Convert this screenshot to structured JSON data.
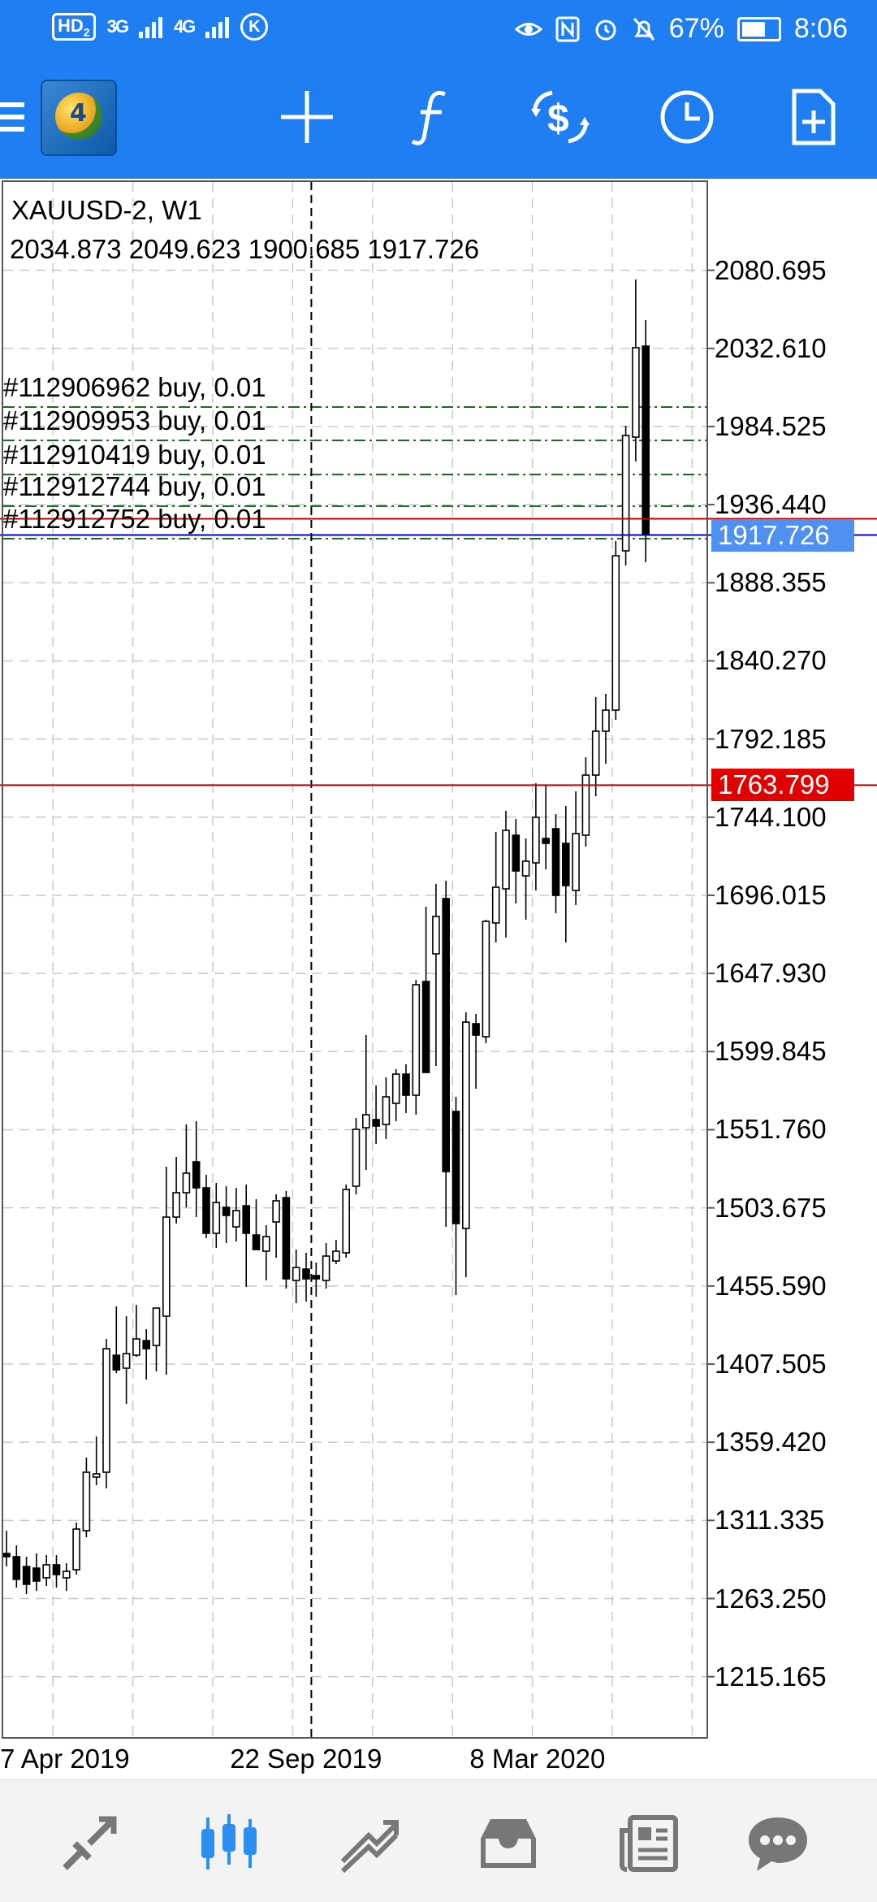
{
  "status_bar": {
    "hd_label": "HD",
    "hd_sub": "2",
    "signal1": "3G",
    "signal2": "4G",
    "k_icon": "K",
    "battery_pct": "67%",
    "battery_level": 0.67,
    "time": "8:06",
    "icons": [
      "eye-icon",
      "nfc-icon",
      "alarm-icon",
      "mute-icon"
    ]
  },
  "toolbar": {
    "menu_icon": "hamburger-icon",
    "logo_num": "4",
    "icons": [
      "crosshair-icon",
      "function-icon",
      "trade-icon",
      "clock-icon",
      "new-chart-icon"
    ]
  },
  "chart": {
    "symbol_line": "XAUUSD-2, W1",
    "ohlc_line": "2034.873 2049.623 1900.685 1917.726",
    "orders": [
      {
        "label": "#112906962 buy, 0.01",
        "price": 1996.5
      },
      {
        "label": "#112909953 buy, 0.01",
        "price": 1976.0
      },
      {
        "label": "#112910419 buy, 0.01",
        "price": 1955.0
      },
      {
        "label": "#112912744 buy, 0.01",
        "price": 1935.5
      },
      {
        "label": "#112912752 buy, 0.01",
        "price": 1915.5
      }
    ],
    "bid_price": "1917.726",
    "alert_price": "1763.799",
    "colors": {
      "bid_line": "#0000cc",
      "alert_line": "#c40000",
      "bid_box": "#4f90f0",
      "alert_box": "#e00000",
      "order_line": "#1a6d1a",
      "grid": "#c8c8c8"
    }
  },
  "chart_data": {
    "type": "candlestick",
    "symbol": "XAUUSD-2",
    "timeframe": "W1",
    "ylim": [
      1178,
      2135
    ],
    "y_ticks": [
      "2080.695",
      "2032.610",
      "1984.525",
      "1936.440",
      "1888.355",
      "1840.270",
      "1792.185",
      "1744.100",
      "1696.015",
      "1647.930",
      "1599.845",
      "1551.760",
      "1503.675",
      "1455.590",
      "1407.505",
      "1359.420",
      "1311.335",
      "1263.250",
      "1215.165"
    ],
    "x_ticks": [
      {
        "label": "7 Apr 2019",
        "bar": 0
      },
      {
        "label": "22 Sep 2019",
        "bar": 24
      },
      {
        "label": "8 Mar 2020",
        "bar": 48
      }
    ],
    "crosshair_bar": 38,
    "candles": [
      {
        "o": 1291,
        "h": 1305,
        "l": 1283,
        "c": 1289
      },
      {
        "o": 1289,
        "h": 1296,
        "l": 1270,
        "c": 1275
      },
      {
        "o": 1283,
        "h": 1289,
        "l": 1266,
        "c": 1272
      },
      {
        "o": 1282,
        "h": 1291,
        "l": 1268,
        "c": 1274
      },
      {
        "o": 1276,
        "h": 1290,
        "l": 1271,
        "c": 1284
      },
      {
        "o": 1284,
        "h": 1290,
        "l": 1270,
        "c": 1278
      },
      {
        "o": 1276,
        "h": 1285,
        "l": 1268,
        "c": 1280
      },
      {
        "o": 1281,
        "h": 1310,
        "l": 1278,
        "c": 1306
      },
      {
        "o": 1305,
        "h": 1350,
        "l": 1301,
        "c": 1341
      },
      {
        "o": 1338,
        "h": 1363,
        "l": 1333,
        "c": 1340
      },
      {
        "o": 1341,
        "h": 1423,
        "l": 1331,
        "c": 1417
      },
      {
        "o": 1413,
        "h": 1443,
        "l": 1402,
        "c": 1404
      },
      {
        "o": 1405,
        "h": 1437,
        "l": 1383,
        "c": 1414
      },
      {
        "o": 1413,
        "h": 1444,
        "l": 1412,
        "c": 1423
      },
      {
        "o": 1422,
        "h": 1429,
        "l": 1398,
        "c": 1417
      },
      {
        "o": 1419,
        "h": 1437,
        "l": 1403,
        "c": 1442
      },
      {
        "o": 1437,
        "h": 1529,
        "l": 1401,
        "c": 1498
      },
      {
        "o": 1498,
        "h": 1535,
        "l": 1494,
        "c": 1513
      },
      {
        "o": 1513,
        "h": 1555,
        "l": 1504,
        "c": 1525
      },
      {
        "o": 1532,
        "h": 1557,
        "l": 1498,
        "c": 1516
      },
      {
        "o": 1516,
        "h": 1524,
        "l": 1485,
        "c": 1488
      },
      {
        "o": 1488,
        "h": 1519,
        "l": 1479,
        "c": 1507
      },
      {
        "o": 1504,
        "h": 1517,
        "l": 1482,
        "c": 1499
      },
      {
        "o": 1492,
        "h": 1516,
        "l": 1483,
        "c": 1502
      },
      {
        "o": 1505,
        "h": 1518,
        "l": 1455,
        "c": 1488
      },
      {
        "o": 1487,
        "h": 1509,
        "l": 1478,
        "c": 1478
      },
      {
        "o": 1477,
        "h": 1493,
        "l": 1459,
        "c": 1486
      },
      {
        "o": 1495,
        "h": 1512,
        "l": 1473,
        "c": 1508
      },
      {
        "o": 1510,
        "h": 1514,
        "l": 1454,
        "c": 1460
      },
      {
        "o": 1459,
        "h": 1478,
        "l": 1445,
        "c": 1467
      },
      {
        "o": 1466,
        "h": 1476,
        "l": 1446,
        "c": 1460
      },
      {
        "o": 1462,
        "h": 1470,
        "l": 1449,
        "c": 1460
      },
      {
        "o": 1459,
        "h": 1482,
        "l": 1454,
        "c": 1474
      },
      {
        "o": 1471,
        "h": 1484,
        "l": 1469,
        "c": 1477
      },
      {
        "o": 1476,
        "h": 1518,
        "l": 1473,
        "c": 1515
      },
      {
        "o": 1517,
        "h": 1559,
        "l": 1512,
        "c": 1552
      },
      {
        "o": 1553,
        "h": 1610,
        "l": 1527,
        "c": 1561
      },
      {
        "o": 1558,
        "h": 1579,
        "l": 1543,
        "c": 1554
      },
      {
        "o": 1555,
        "h": 1584,
        "l": 1546,
        "c": 1572
      },
      {
        "o": 1568,
        "h": 1589,
        "l": 1557,
        "c": 1586
      },
      {
        "o": 1586,
        "h": 1592,
        "l": 1562,
        "c": 1573
      },
      {
        "o": 1573,
        "h": 1644,
        "l": 1561,
        "c": 1641
      },
      {
        "o": 1643,
        "h": 1689,
        "l": 1588,
        "c": 1587
      },
      {
        "o": 1660,
        "h": 1703,
        "l": 1591,
        "c": 1683
      },
      {
        "o": 1694,
        "h": 1705,
        "l": 1492,
        "c": 1526
      },
      {
        "o": 1563,
        "h": 1572,
        "l": 1450,
        "c": 1494
      },
      {
        "o": 1491,
        "h": 1624,
        "l": 1461,
        "c": 1618
      },
      {
        "o": 1617,
        "h": 1623,
        "l": 1577,
        "c": 1610
      },
      {
        "o": 1609,
        "h": 1681,
        "l": 1605,
        "c": 1680
      },
      {
        "o": 1679,
        "h": 1735,
        "l": 1667,
        "c": 1701
      },
      {
        "o": 1700,
        "h": 1748,
        "l": 1670,
        "c": 1736
      },
      {
        "o": 1733,
        "h": 1743,
        "l": 1691,
        "c": 1711
      },
      {
        "o": 1708,
        "h": 1731,
        "l": 1681,
        "c": 1717
      },
      {
        "o": 1716,
        "h": 1765,
        "l": 1699,
        "c": 1744
      },
      {
        "o": 1731,
        "h": 1764,
        "l": 1712,
        "c": 1728
      },
      {
        "o": 1737,
        "h": 1746,
        "l": 1685,
        "c": 1696
      },
      {
        "o": 1728,
        "h": 1751,
        "l": 1667,
        "c": 1702
      },
      {
        "o": 1699,
        "h": 1760,
        "l": 1690,
        "c": 1734
      },
      {
        "o": 1733,
        "h": 1781,
        "l": 1726,
        "c": 1770
      },
      {
        "o": 1770,
        "h": 1818,
        "l": 1757,
        "c": 1797
      },
      {
        "o": 1797,
        "h": 1820,
        "l": 1777,
        "c": 1810
      },
      {
        "o": 1810,
        "h": 1914,
        "l": 1804,
        "c": 1905
      },
      {
        "o": 1908,
        "h": 1985,
        "l": 1899,
        "c": 1979
      },
      {
        "o": 1978,
        "h": 2075,
        "l": 1963,
        "c": 2033
      },
      {
        "o": 2034,
        "h": 2050,
        "l": 1901,
        "c": 1918
      }
    ]
  },
  "bottom_nav": {
    "items": [
      "quotes-icon",
      "chart-icon",
      "trade-icon",
      "history-icon",
      "news-icon",
      "chat-icon"
    ]
  }
}
